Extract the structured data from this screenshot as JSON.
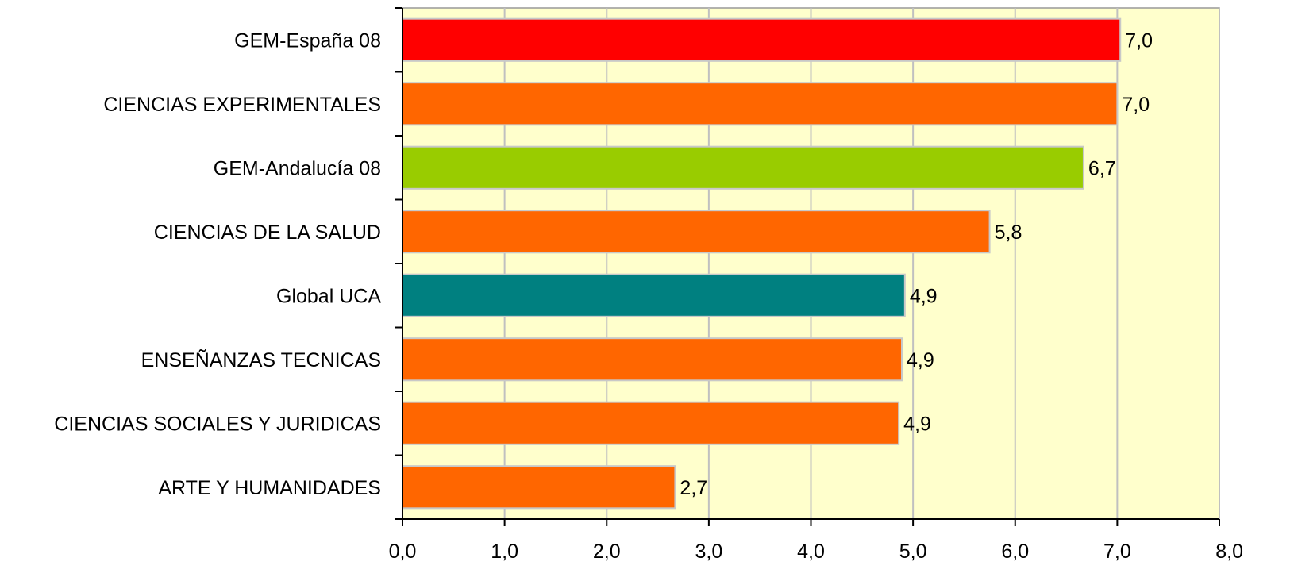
{
  "chart_data": {
    "type": "bar",
    "orientation": "horizontal",
    "categories": [
      "GEM-España 08",
      "CIENCIAS EXPERIMENTALES",
      "GEM-Andalucía 08",
      "CIENCIAS DE LA SALUD",
      "Global UCA",
      "ENSEÑANZAS TECNICAS",
      "CIENCIAS SOCIALES Y JURIDICAS",
      "ARTE Y HUMANIDADES"
    ],
    "values": [
      7.03,
      7.0,
      6.67,
      5.75,
      4.92,
      4.89,
      4.86,
      2.67
    ],
    "value_labels": [
      "7,0",
      "7,0",
      "6,7",
      "5,8",
      "4,9",
      "4,9",
      "4,9",
      "2,7"
    ],
    "bar_colors": [
      "#ff0000",
      "#ff6600",
      "#99cc00",
      "#ff6600",
      "#008080",
      "#ff6600",
      "#ff6600",
      "#ff6600"
    ],
    "xlim": [
      0,
      8
    ],
    "xticks": [
      0,
      1,
      2,
      3,
      4,
      5,
      6,
      7,
      8
    ],
    "xtick_labels": [
      "0,0",
      "1,0",
      "2,0",
      "3,0",
      "4,0",
      "5,0",
      "6,0",
      "7,0",
      "8,0"
    ],
    "grid": "vertical",
    "plot_background": "#ffffcc",
    "title": "",
    "xlabel": "",
    "ylabel": ""
  }
}
